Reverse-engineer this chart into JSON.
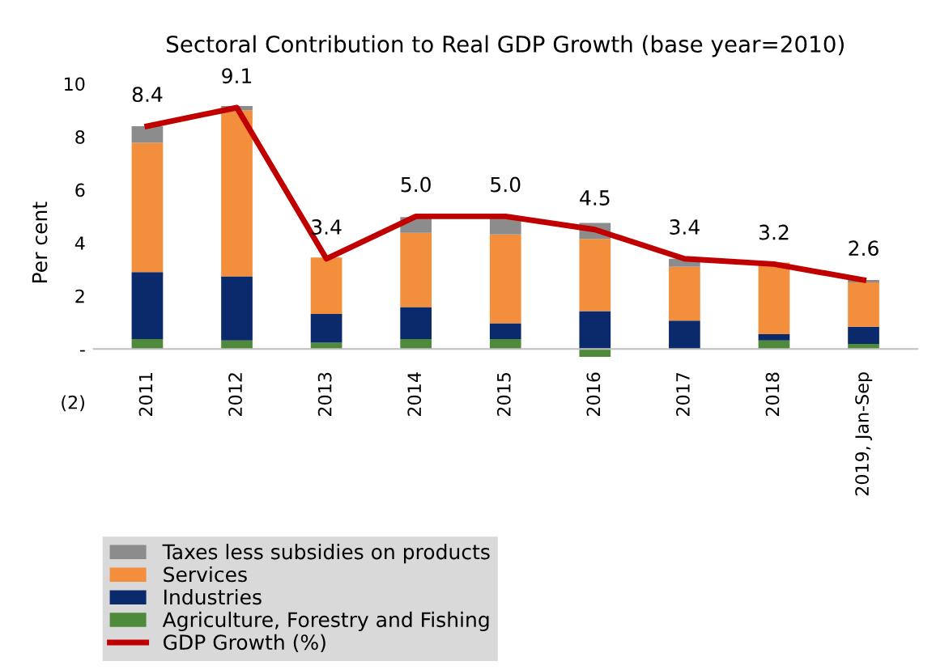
{
  "chart_data": {
    "type": "bar",
    "stacked": true,
    "title": "Sectoral Contribution to Real GDP Growth (base year=2010)",
    "ylabel": "Per cent",
    "categories": [
      "2011",
      "2012",
      "2013",
      "2014",
      "2015",
      "2016",
      "2017",
      "2018",
      "2019, Jan-Sep"
    ],
    "series": [
      {
        "name": "Agriculture, Forestry and Fishing",
        "color": "#4e8a3a",
        "values": [
          0.37,
          0.32,
          0.24,
          0.37,
          0.37,
          -0.3,
          null,
          0.32,
          0.19
        ]
      },
      {
        "name": "Industries",
        "color": "#0b2a6b",
        "values": [
          2.53,
          2.42,
          1.08,
          1.21,
          0.6,
          1.43,
          1.07,
          0.24,
          0.65
        ]
      },
      {
        "name": "Services",
        "color": "#f28e3c",
        "values": [
          4.87,
          6.26,
          2.13,
          2.8,
          3.35,
          2.72,
          2.03,
          2.7,
          1.67
        ]
      },
      {
        "name": "Taxes less subsidies on products",
        "color": "#8c8c8c",
        "values": [
          0.63,
          0.16,
          null,
          0.59,
          0.65,
          0.6,
          0.3,
          0.0,
          0.09
        ]
      },
      {
        "name": "GDP Growth (%)",
        "type": "line",
        "color": "#c00000",
        "values": [
          8.4,
          9.1,
          3.4,
          5.0,
          5.0,
          4.5,
          3.4,
          3.2,
          2.6
        ],
        "value_labels": [
          "8.4",
          "9.1",
          "3.4",
          "5.0",
          "5.0",
          "4.5",
          "3.4",
          "3.2",
          "2.6"
        ]
      }
    ],
    "ylim": [
      -2,
      10
    ],
    "yticks": [
      {
        "value": -2,
        "label": "(2)"
      },
      {
        "value": 0,
        "label": "-"
      },
      2,
      4,
      6,
      8,
      10
    ],
    "legend": "bottom"
  }
}
